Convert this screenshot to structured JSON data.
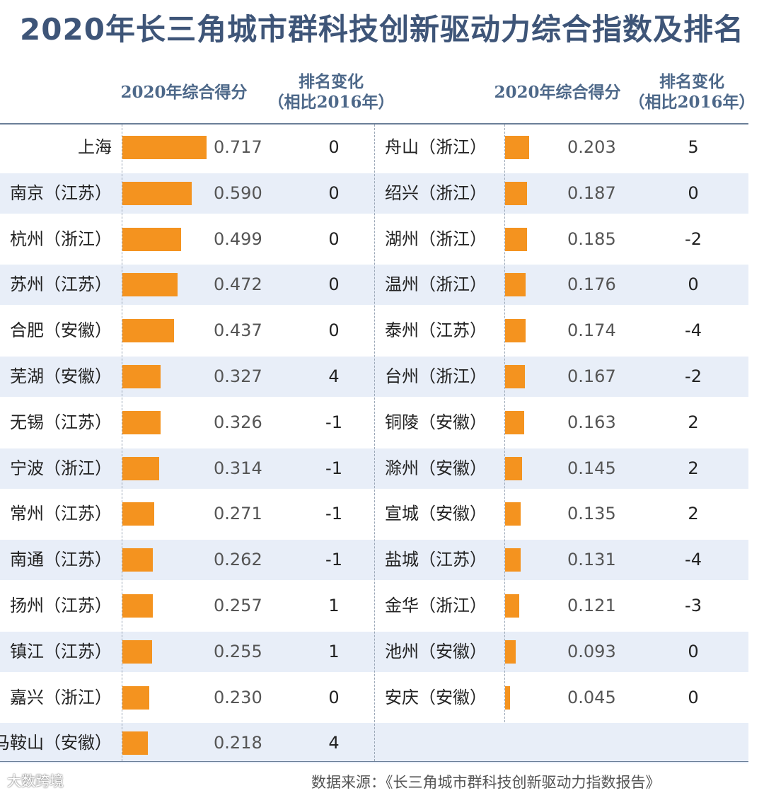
{
  "title": "2020年长三角城市群科技创新驱动力综合指数及排名",
  "headers": {
    "score": "2020年综合得分",
    "change_line1": "排名变化",
    "change_line2": "（相比2016年）"
  },
  "source": "数据来源：《长三角城市群科技创新驱动力指数报告》",
  "watermark": "大数跨境",
  "colors": {
    "bar": "#f4931f",
    "title": "#3e5578",
    "stripe": "#e8eef8"
  },
  "chart_data": {
    "type": "bar",
    "orientation": "horizontal",
    "title": "2020年长三角城市群科技创新驱动力综合指数及排名",
    "series": [
      {
        "name": "2020年综合得分",
        "values": [
          0.717,
          0.59,
          0.499,
          0.472,
          0.437,
          0.327,
          0.326,
          0.314,
          0.271,
          0.262,
          0.257,
          0.255,
          0.23,
          0.218,
          0.203,
          0.187,
          0.185,
          0.176,
          0.174,
          0.167,
          0.163,
          0.145,
          0.135,
          0.131,
          0.121,
          0.093,
          0.045
        ]
      }
    ],
    "rows": [
      {
        "city": "上海",
        "score": 0.717,
        "score_label": "0.717",
        "change": "0"
      },
      {
        "city": "南京（江苏）",
        "score": 0.59,
        "score_label": "0.590",
        "change": "0"
      },
      {
        "city": "杭州（浙江）",
        "score": 0.499,
        "score_label": "0.499",
        "change": "0"
      },
      {
        "city": "苏州（江苏）",
        "score": 0.472,
        "score_label": "0.472",
        "change": "0"
      },
      {
        "city": "合肥（安徽）",
        "score": 0.437,
        "score_label": "0.437",
        "change": "0"
      },
      {
        "city": "芜湖（安徽）",
        "score": 0.327,
        "score_label": "0.327",
        "change": "4"
      },
      {
        "city": "无锡（江苏）",
        "score": 0.326,
        "score_label": "0.326",
        "change": "-1"
      },
      {
        "city": "宁波（浙江）",
        "score": 0.314,
        "score_label": "0.314",
        "change": "-1"
      },
      {
        "city": "常州（江苏）",
        "score": 0.271,
        "score_label": "0.271",
        "change": "-1"
      },
      {
        "city": "南通（江苏）",
        "score": 0.262,
        "score_label": "0.262",
        "change": "-1"
      },
      {
        "city": "扬州（江苏）",
        "score": 0.257,
        "score_label": "0.257",
        "change": "1"
      },
      {
        "city": "镇江（江苏）",
        "score": 0.255,
        "score_label": "0.255",
        "change": "1"
      },
      {
        "city": "嘉兴（浙江）",
        "score": 0.23,
        "score_label": "0.230",
        "change": "0"
      },
      {
        "city": "马鞍山（安徽）",
        "score": 0.218,
        "score_label": "0.218",
        "change": "4"
      },
      {
        "city": "舟山（浙江）",
        "score": 0.203,
        "score_label": "0.203",
        "change": "5"
      },
      {
        "city": "绍兴（浙江）",
        "score": 0.187,
        "score_label": "0.187",
        "change": "0"
      },
      {
        "city": "湖州（浙江）",
        "score": 0.185,
        "score_label": "0.185",
        "change": "-2"
      },
      {
        "city": "温州（浙江）",
        "score": 0.176,
        "score_label": "0.176",
        "change": "0"
      },
      {
        "city": "泰州（江苏）",
        "score": 0.174,
        "score_label": "0.174",
        "change": "-4"
      },
      {
        "city": "台州（浙江）",
        "score": 0.167,
        "score_label": "0.167",
        "change": "-2"
      },
      {
        "city": "铜陵（安徽）",
        "score": 0.163,
        "score_label": "0.163",
        "change": "2"
      },
      {
        "city": "滁州（安徽）",
        "score": 0.145,
        "score_label": "0.145",
        "change": "2"
      },
      {
        "city": "宣城（安徽）",
        "score": 0.135,
        "score_label": "0.135",
        "change": "2"
      },
      {
        "city": "盐城（江苏）",
        "score": 0.131,
        "score_label": "0.131",
        "change": "-4"
      },
      {
        "city": "金华（浙江）",
        "score": 0.121,
        "score_label": "0.121",
        "change": "-3"
      },
      {
        "city": "池州（安徽）",
        "score": 0.093,
        "score_label": "0.093",
        "change": "0"
      },
      {
        "city": "安庆（安徽）",
        "score": 0.045,
        "score_label": "0.045",
        "change": "0"
      }
    ]
  }
}
